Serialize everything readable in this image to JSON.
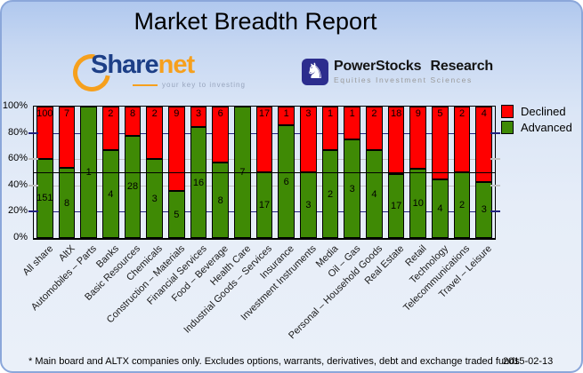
{
  "title": "Market Breadth Report",
  "logos": {
    "sharenet": {
      "word_main": "Share",
      "word_accent": "net",
      "tagline": "your key to investing",
      "main_color": "#1d3f87",
      "accent_color": "#f6a01d",
      "icon": "swoosh-arc-icon"
    },
    "powerstocks": {
      "name": "PowerStocks Research",
      "subtitle": "Equities Investment Sciences",
      "icon": "knight-chess-icon",
      "icon_color": "#2c2d8e",
      "knight_glyph": "♞"
    }
  },
  "chart_data": {
    "type": "bar",
    "stacked": true,
    "stack_mode": "percent",
    "categories": [
      "All share",
      "AltX",
      "Automobiles – Parts",
      "Banks",
      "Basic Resources",
      "Chemicals",
      "Construction – Materials",
      "Financial Services",
      "Food – Beverage",
      "Health Care",
      "Industrial Goods – Services",
      "Insurance",
      "Investment Instruments",
      "Media",
      "Oil – Gas",
      "Personal – Household Goods",
      "Real Estate",
      "Retail",
      "Technology",
      "Telecommunications",
      "Travel – Leisure"
    ],
    "series": [
      {
        "name": "Declined",
        "color": "#ff0000",
        "values": [
          100,
          7,
          0,
          2,
          8,
          2,
          9,
          3,
          6,
          0,
          17,
          1,
          3,
          1,
          1,
          2,
          18,
          9,
          5,
          2,
          4
        ]
      },
      {
        "name": "Advanced",
        "color": "#3f8a05",
        "values": [
          151,
          8,
          1,
          4,
          28,
          3,
          5,
          16,
          8,
          7,
          17,
          6,
          3,
          2,
          3,
          4,
          17,
          10,
          4,
          2,
          3
        ]
      }
    ],
    "y_ticks": [
      {
        "label": "0%",
        "value": 0
      },
      {
        "label": "20%",
        "value": 20
      },
      {
        "label": "40%",
        "value": 40
      },
      {
        "label": "60%",
        "value": 60
      },
      {
        "label": "80%",
        "value": 80
      },
      {
        "label": "100%",
        "value": 100
      }
    ],
    "ylim": [
      0,
      100
    ],
    "grid": true,
    "gridlines": [
      {
        "value": 20,
        "color": "#22227e"
      },
      {
        "value": 40,
        "color": "#c2c2c2"
      },
      {
        "value": 60,
        "color": "#c2c2c2"
      },
      {
        "value": 80,
        "color": "#22227e"
      }
    ],
    "reference_line": {
      "value": 50,
      "color": "#000000"
    },
    "legend_position": "top-right-outside"
  },
  "footer": {
    "note": "* Main board and ALTX companies only. Excludes options, warrants, derivatives, debt and exchange traded funds",
    "date": "2015-02-13"
  }
}
